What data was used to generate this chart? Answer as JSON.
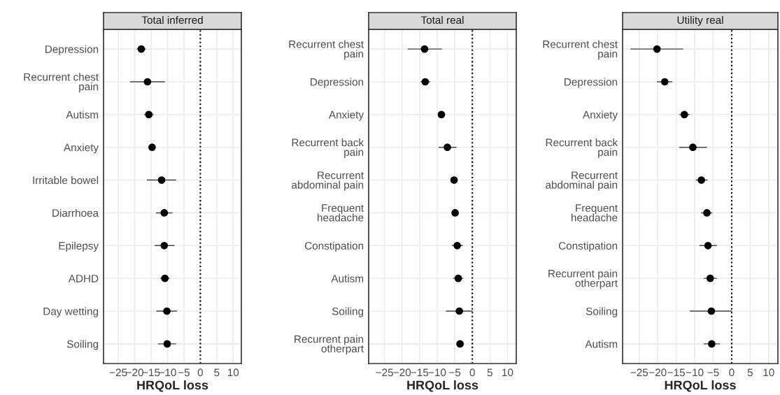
{
  "chart_data": [
    {
      "type": "scatter",
      "title": "Total inferred",
      "xlabel": "HRQoL loss",
      "orientation": "horizontal",
      "marker": "circle",
      "grid": true,
      "color": "#000000",
      "categories": [
        "Depression",
        "Recurrent chest\npain",
        "Autism",
        "Anxiety",
        "Irritable bowel",
        "Diarrhoea",
        "Epilepsy",
        "ADHD",
        "Day wetting",
        "Soiling"
      ],
      "values": [
        -18.0,
        -16.1,
        -15.7,
        -14.7,
        -11.8,
        -11.0,
        -11.0,
        -10.8,
        -10.2,
        -10.1
      ],
      "errors": [
        [
          -19.3,
          -16.7
        ],
        [
          -21.3,
          -10.9
        ],
        [
          -17.0,
          -14.3
        ],
        [
          -15.4,
          -14.0
        ],
        [
          -16.2,
          -7.5
        ],
        [
          -13.4,
          -8.6
        ],
        [
          -13.8,
          -8.0
        ],
        [
          -12.1,
          -9.5
        ],
        [
          -13.3,
          -7.2
        ],
        [
          -12.8,
          -7.5
        ]
      ],
      "xlim": [
        -29.5,
        12.5
      ],
      "xticks": [
        {
          "value": -25,
          "label": "−25"
        },
        {
          "value": -20,
          "label": "−20"
        },
        {
          "value": -15,
          "label": "−15"
        },
        {
          "value": -10,
          "label": "−10"
        },
        {
          "value": -5,
          "label": "−5"
        },
        0,
        5,
        10
      ],
      "ref_lines": [
        {
          "axis": "x",
          "value": 0,
          "line_style": "dotted",
          "color": "#000000"
        }
      ]
    },
    {
      "type": "scatter",
      "title": "Total real",
      "xlabel": "HRQoL loss",
      "orientation": "horizontal",
      "marker": "circle",
      "grid": true,
      "color": "#000000",
      "categories": [
        "Recurrent chest\npain",
        "Depression",
        "Anxiety",
        "Recurrent back\npain",
        "Recurrent\nabdominal pain",
        "Frequent\nheadache",
        "Constipation",
        "Autism",
        "Soiling",
        "Recurrent pain\notherpart"
      ],
      "values": [
        -13.6,
        -13.4,
        -8.8,
        -7.1,
        -5.2,
        -4.9,
        -4.3,
        -4.0,
        -3.7,
        -3.5
      ],
      "errors": [
        [
          -18.3,
          -8.7
        ],
        [
          -14.6,
          -12.1
        ],
        [
          -9.3,
          -8.2
        ],
        [
          -9.5,
          -4.6
        ],
        [
          -6.1,
          -4.4
        ],
        [
          -5.5,
          -4.2
        ],
        [
          -5.7,
          -2.8
        ],
        [
          -5.4,
          -2.7
        ],
        [
          -7.4,
          0.0
        ],
        [
          -4.4,
          -2.7
        ]
      ],
      "xlim": [
        -29.5,
        12.5
      ],
      "xticks": [
        {
          "value": -25,
          "label": "−25"
        },
        {
          "value": -20,
          "label": "−20"
        },
        {
          "value": -15,
          "label": "−15"
        },
        {
          "value": -10,
          "label": "−10"
        },
        {
          "value": -5,
          "label": "−5"
        },
        0,
        5,
        10
      ],
      "ref_lines": [
        {
          "axis": "x",
          "value": 0,
          "line_style": "dotted",
          "color": "#000000"
        }
      ]
    },
    {
      "type": "scatter",
      "title": "Utility real",
      "xlabel": "HRQoL loss",
      "orientation": "horizontal",
      "marker": "circle",
      "grid": true,
      "color": "#000000",
      "categories": [
        "Recurrent chest\npain",
        "Depression",
        "Anxiety",
        "Recurrent back\npain",
        "Recurrent\nabdominal pain",
        "Frequent\nheadache",
        "Constipation",
        "Recurrent pain\notherpart",
        "Soiling",
        "Autism"
      ],
      "values": [
        -20.2,
        -18.1,
        -12.8,
        -10.5,
        -8.2,
        -6.7,
        -6.4,
        -5.8,
        -5.5,
        -5.4
      ],
      "errors": [
        [
          -27.3,
          -13.2
        ],
        [
          -20.1,
          -16.2
        ],
        [
          -14.1,
          -11.4
        ],
        [
          -14.1,
          -6.8
        ],
        [
          -9.6,
          -6.6
        ],
        [
          -8.2,
          -5.3
        ],
        [
          -8.6,
          -4.1
        ],
        [
          -7.5,
          -4.1
        ],
        [
          -11.2,
          0.0
        ],
        [
          -7.5,
          -3.3
        ]
      ],
      "xlim": [
        -29.5,
        12.5
      ],
      "xticks": [
        {
          "value": -25,
          "label": "−25"
        },
        {
          "value": -20,
          "label": "−20"
        },
        {
          "value": -15,
          "label": "−15"
        },
        {
          "value": -10,
          "label": "−10"
        },
        {
          "value": -5,
          "label": "−5"
        },
        0,
        5,
        10
      ],
      "ref_lines": [
        {
          "axis": "x",
          "value": 0,
          "line_style": "dotted",
          "color": "#000000"
        }
      ]
    }
  ]
}
